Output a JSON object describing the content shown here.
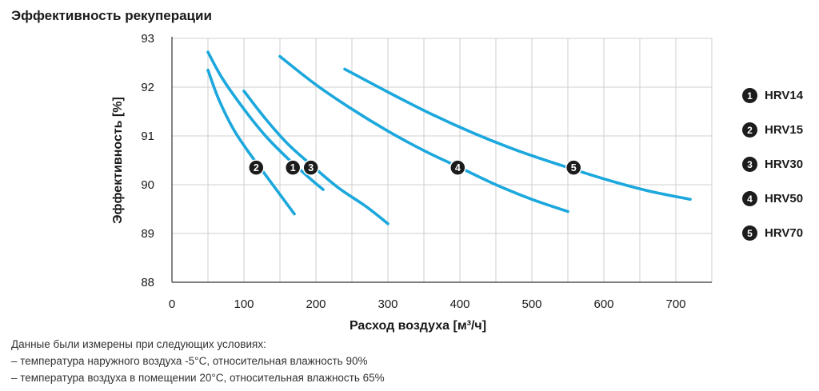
{
  "chart_data": {
    "type": "line",
    "title": "Эффективность рекуперации",
    "xlabel": "Расход воздуха [м³/ч]",
    "ylabel": "Эффективность [%]",
    "xlim": [
      0,
      750
    ],
    "ylim": [
      88,
      93
    ],
    "x_ticks": [
      0,
      100,
      200,
      300,
      400,
      500,
      600,
      700
    ],
    "y_ticks": [
      88,
      89,
      90,
      91,
      92,
      93
    ],
    "grid": true,
    "series_color": "#1ca8dd",
    "series": [
      {
        "name": "HRV14",
        "marker_label": "1",
        "marker_at": [
          168,
          90.35
        ],
        "points": [
          [
            50,
            92.72
          ],
          [
            70,
            92.18
          ],
          [
            100,
            91.55
          ],
          [
            130,
            91.0
          ],
          [
            160,
            90.55
          ],
          [
            190,
            90.15
          ],
          [
            210,
            89.9
          ]
        ]
      },
      {
        "name": "HRV15",
        "marker_label": "2",
        "marker_at": [
          117,
          90.35
        ],
        "points": [
          [
            50,
            92.35
          ],
          [
            65,
            91.75
          ],
          [
            85,
            91.15
          ],
          [
            105,
            90.7
          ],
          [
            130,
            90.2
          ],
          [
            150,
            89.8
          ],
          [
            170,
            89.4
          ]
        ]
      },
      {
        "name": "HRV30",
        "marker_label": "3",
        "marker_at": [
          193,
          90.35
        ],
        "points": [
          [
            100,
            91.92
          ],
          [
            130,
            91.35
          ],
          [
            160,
            90.85
          ],
          [
            190,
            90.45
          ],
          [
            230,
            89.95
          ],
          [
            270,
            89.55
          ],
          [
            300,
            89.2
          ]
        ]
      },
      {
        "name": "HRV50",
        "marker_label": "4",
        "marker_at": [
          397,
          90.35
        ],
        "points": [
          [
            150,
            92.63
          ],
          [
            200,
            92.05
          ],
          [
            250,
            91.55
          ],
          [
            300,
            91.1
          ],
          [
            350,
            90.7
          ],
          [
            400,
            90.35
          ],
          [
            450,
            90.0
          ],
          [
            500,
            89.7
          ],
          [
            550,
            89.45
          ]
        ]
      },
      {
        "name": "HRV70",
        "marker_label": "5",
        "marker_at": [
          558,
          90.35
        ],
        "points": [
          [
            240,
            92.37
          ],
          [
            300,
            91.9
          ],
          [
            360,
            91.45
          ],
          [
            420,
            91.05
          ],
          [
            480,
            90.7
          ],
          [
            540,
            90.4
          ],
          [
            600,
            90.12
          ],
          [
            660,
            89.88
          ],
          [
            720,
            89.7
          ]
        ]
      }
    ]
  },
  "legend": {
    "items": [
      {
        "num": "1",
        "label": "HRV14"
      },
      {
        "num": "2",
        "label": "HRV15"
      },
      {
        "num": "3",
        "label": "HRV30"
      },
      {
        "num": "4",
        "label": "HRV50"
      },
      {
        "num": "5",
        "label": "HRV70"
      }
    ]
  },
  "notes": {
    "line1": "Данные были измерены при следующих условиях:",
    "line2": "– температура наружного воздуха -5°C, относительная влажность 90%",
    "line3": "– температура воздуха в помещении 20°C, относительная влажность 65%"
  }
}
